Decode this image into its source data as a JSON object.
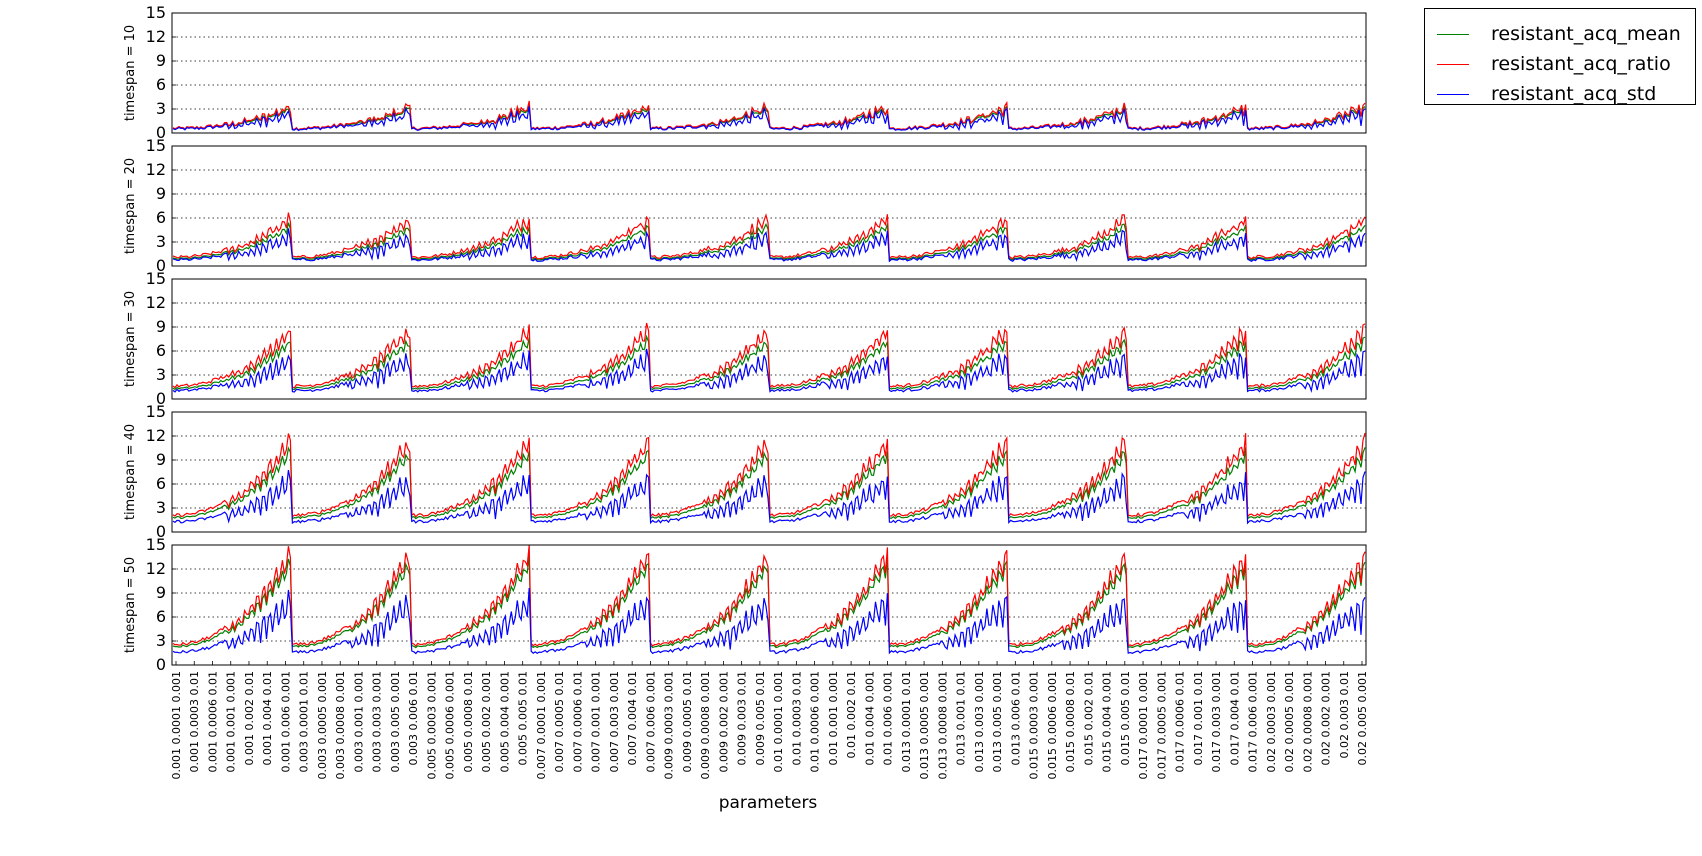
{
  "chart_data": {
    "type": "line",
    "xlabel": "parameters",
    "panel_ylabels": [
      "timespan = 10",
      "timespan = 20",
      "timespan = 30",
      "timespan = 40",
      "timespan = 50"
    ],
    "ylim": [
      0,
      15
    ],
    "yticks": [
      0,
      3,
      6,
      9,
      12,
      15
    ],
    "grid": "horizontal dotted",
    "legend_placement": "outside top-right",
    "series": [
      {
        "name": "resistant_acq_mean",
        "color": "#008000"
      },
      {
        "name": "resistant_acq_ratio",
        "color": "#ff0000"
      },
      {
        "name": "resistant_acq_std",
        "color": "#0000ff"
      }
    ],
    "groups": [
      "0.001",
      "0.003",
      "0.005",
      "0.007",
      "0.009",
      "0.01",
      "0.013",
      "0.015",
      "0.017",
      "0.02"
    ],
    "peak_ratio_by_panel": [
      3,
      5.5,
      8,
      10.5,
      12.8
    ],
    "peak_mean_by_panel": [
      2.7,
      4.5,
      6.6,
      9,
      11.5
    ],
    "peak_std_by_panel": [
      2.5,
      3.8,
      5.2,
      6.5,
      8
    ],
    "tick_labels": [
      "0.001 0.0001 0.001",
      "0.001 0.0003 0.01",
      "0.001 0.0006 0.01",
      "0.001 0.001 0.001",
      "0.001 0.002 0.01",
      "0.001 0.004 0.01",
      "0.001 0.006 0.001",
      "0.003 0.0001 0.01",
      "0.003 0.0005 0.001",
      "0.003 0.0008 0.001",
      "0.003 0.001 0.001",
      "0.003 0.003 0.001",
      "0.003 0.005 0.001",
      "0.003 0.006 0.01",
      "0.005 0.0003 0.001",
      "0.005 0.0006 0.001",
      "0.005 0.0008 0.01",
      "0.005 0.002 0.001",
      "0.005 0.004 0.001",
      "0.005 0.005 0.01",
      "0.007 0.0001 0.001",
      "0.007 0.0005 0.01",
      "0.007 0.0006 0.01",
      "0.007 0.001 0.001",
      "0.007 0.003 0.001",
      "0.007 0.004 0.01",
      "0.007 0.006 0.001",
      "0.009 0.0003 0.001",
      "0.009 0.0005 0.01",
      "0.009 0.0008 0.001",
      "0.009 0.002 0.001",
      "0.009 0.003 0.01",
      "0.009 0.005 0.01",
      "0.01 0.0001 0.001",
      "0.01 0.0003 0.01",
      "0.01 0.0006 0.001",
      "0.01 0.001 0.001",
      "0.01 0.002 0.01",
      "0.01 0.004 0.001",
      "0.01 0.006 0.001",
      "0.013 0.0001 0.01",
      "0.013 0.0005 0.001",
      "0.013 0.0008 0.001",
      "0.013 0.001 0.01",
      "0.013 0.003 0.001",
      "0.013 0.005 0.001",
      "0.013 0.006 0.01",
      "0.015 0.0003 0.001",
      "0.015 0.0006 0.001",
      "0.015 0.0008 0.01",
      "0.015 0.002 0.01",
      "0.015 0.004 0.001",
      "0.015 0.005 0.01",
      "0.017 0.0001 0.001",
      "0.017 0.0005 0.001",
      "0.017 0.0006 0.01",
      "0.017 0.001 0.01",
      "0.017 0.003 0.001",
      "0.017 0.004 0.01",
      "0.017 0.006 0.001",
      "0.02 0.0003 0.001",
      "0.02 0.0005 0.001",
      "0.02 0.0008 0.001",
      "0.02 0.002 0.001",
      "0.02 0.003 0.01",
      "0.02 0.005 0.001"
    ]
  }
}
